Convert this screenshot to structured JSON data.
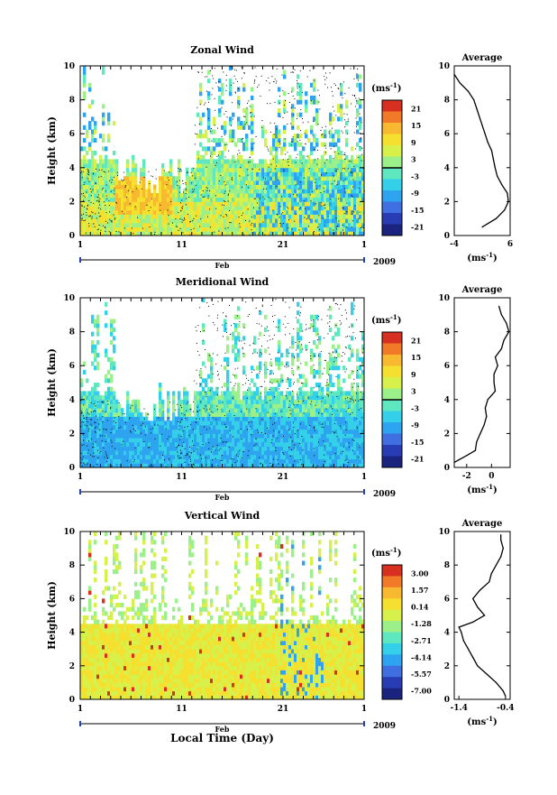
{
  "colors": {
    "scale": [
      "#1a237e",
      "#283cb4",
      "#3f6fe0",
      "#2ea3f0",
      "#34cfe8",
      "#5fe8c0",
      "#9cf08a",
      "#d8f04a",
      "#f5e030",
      "#f8b830",
      "#f07a28",
      "#d83020"
    ],
    "contour": "#000000",
    "axis": "#000000"
  },
  "chart_data": [
    {
      "type": "heatmap",
      "title": "Zonal Wind",
      "ylabel": "Height (km)",
      "ylim": [
        0,
        10
      ],
      "yticks": [
        "0",
        "2",
        "4",
        "6",
        "8",
        "10"
      ],
      "xticks": [
        "1",
        "11",
        "21",
        "1"
      ],
      "month_label": "Feb",
      "year_label": "2009",
      "colorbar": {
        "unit": "(ms",
        "unit_exp": "-1",
        "unit_close": ")",
        "labels": [
          "21",
          "15",
          "9",
          "3",
          "-3",
          "-9",
          "-15",
          "-21"
        ],
        "zero_line_value": "0"
      },
      "profile": {
        "title": "Average",
        "xlim": [
          -4,
          6
        ],
        "xticks": [
          "-4",
          "6"
        ],
        "xlabel": "(ms",
        "xlabel_exp": "-1",
        "xlabel_close": ")",
        "yticks": [
          "0",
          "2",
          "4",
          "6",
          "8",
          "10"
        ],
        "heights": [
          0.5,
          1,
          1.5,
          2,
          2.5,
          3,
          3.5,
          4,
          4.5,
          5,
          5.5,
          6,
          6.5,
          7,
          7.5,
          8,
          8.5,
          9,
          9.5
        ],
        "values": [
          1.0,
          3.5,
          5.0,
          5.7,
          5.5,
          4.5,
          3.7,
          3.3,
          3.0,
          2.7,
          2.0,
          1.5,
          1.0,
          0.5,
          0.0,
          -0.5,
          -1.5,
          -3.0,
          -4.0
        ]
      }
    },
    {
      "type": "heatmap",
      "title": "Meridional Wind",
      "ylabel": "Height (km)",
      "ylim": [
        0,
        10
      ],
      "yticks": [
        "0",
        "2",
        "4",
        "6",
        "8",
        "10"
      ],
      "xticks": [
        "1",
        "11",
        "21",
        "1"
      ],
      "month_label": "Feb",
      "year_label": "2009",
      "colorbar": {
        "unit": "(ms",
        "unit_exp": "-1",
        "unit_close": ")",
        "labels": [
          "21",
          "15",
          "9",
          "3",
          "-3",
          "-9",
          "-15",
          "-21"
        ],
        "zero_line_value": "0"
      },
      "profile": {
        "title": "Average",
        "xlim": [
          -3,
          1.5
        ],
        "xticks": [
          "-2",
          "0"
        ],
        "xlabel": "(ms",
        "xlabel_exp": "-1",
        "xlabel_close": ")",
        "yticks": [
          "0",
          "2",
          "4",
          "6",
          "8",
          "10"
        ],
        "heights": [
          0.3,
          0.7,
          1,
          1.5,
          2,
          2.5,
          3,
          3.5,
          4,
          4.5,
          5,
          5.5,
          6,
          6.5,
          7,
          7.5,
          8,
          8.5,
          9,
          9.5
        ],
        "values": [
          -3.0,
          -2.0,
          -1.3,
          -1.2,
          -0.9,
          -0.6,
          -0.4,
          -0.5,
          -0.3,
          0.3,
          0.2,
          0.2,
          0.5,
          0.3,
          0.8,
          1.0,
          1.4,
          1.2,
          0.8,
          0.6
        ]
      }
    },
    {
      "type": "heatmap",
      "title": "Vertical Wind",
      "ylabel": "Height (km)",
      "ylim": [
        0,
        10
      ],
      "yticks": [
        "0",
        "2",
        "4",
        "6",
        "8",
        "10"
      ],
      "xticks": [
        "1",
        "11",
        "21",
        "1"
      ],
      "month_label": "Feb",
      "year_label": "2009",
      "xlabel": "Local Time (Day)",
      "colorbar": {
        "unit": "(ms",
        "unit_exp": "-1",
        "unit_close": ")",
        "labels": [
          "3.00",
          "1.57",
          "0.14",
          "-1.28",
          "-2.71",
          "-4.14",
          "-5.57",
          "-7.00"
        ]
      },
      "profile": {
        "title": "Average",
        "xlim": [
          -1.5,
          -0.3
        ],
        "xticks": [
          "-1.4",
          "-0.4"
        ],
        "xlabel": "(ms",
        "xlabel_exp": "-1",
        "xlabel_close": ")",
        "yticks": [
          "0",
          "2",
          "4",
          "6",
          "8",
          "10"
        ],
        "heights": [
          0.2,
          0.5,
          1,
          1.5,
          2,
          2.5,
          3,
          3.5,
          4,
          4.3,
          4.6,
          5,
          5.5,
          6,
          6.5,
          7,
          7.5,
          8,
          8.5,
          9,
          9.5,
          9.8
        ],
        "values": [
          -0.4,
          -0.45,
          -0.6,
          -0.8,
          -1.0,
          -1.1,
          -1.2,
          -1.3,
          -1.35,
          -1.4,
          -1.1,
          -0.85,
          -1.0,
          -1.1,
          -0.95,
          -0.75,
          -0.7,
          -0.6,
          -0.5,
          -0.45,
          -0.5,
          -0.5
        ]
      }
    }
  ]
}
